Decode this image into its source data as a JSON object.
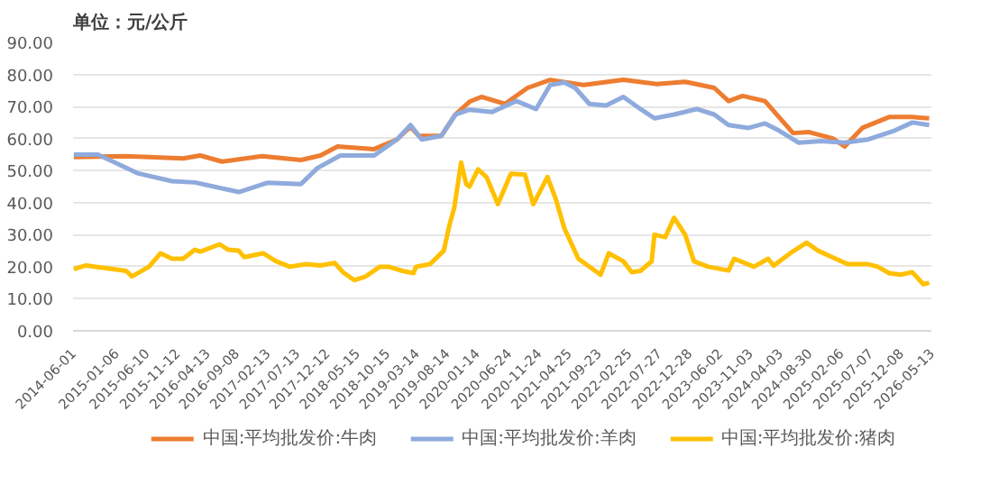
{
  "chart_data": {
    "type": "line",
    "annotations": [
      "单位：元/公斤"
    ],
    "xlim": [
      "2014-06-01",
      "2026-05-13"
    ],
    "xticks": [
      "2014-06-01",
      "2015-01-06",
      "2015-06-10",
      "2015-11-12",
      "2016-04-13",
      "2016-09-08",
      "2017-02-13",
      "2017-07-13",
      "2017-12-12",
      "2018-05-15",
      "2018-10-15",
      "2019-03-14",
      "2019-08-14",
      "2020-01-14",
      "2020-06-24",
      "2020-11-24",
      "2021-04-25",
      "2021-09-23",
      "2022-02-25",
      "2022-07-27",
      "2022-12-28",
      "2023-06-02",
      "2023-11-03",
      "2024-04-03",
      "2024-08-30",
      "2025-02-06",
      "2025-07-07",
      "2025-12-08",
      "2026-05-13"
    ],
    "ylim": [
      0,
      90
    ],
    "yticks": [
      {
        "value": 0,
        "label": "0.00"
      },
      {
        "value": 10,
        "label": "10.00"
      },
      {
        "value": 20,
        "label": "20.00"
      },
      {
        "value": 30,
        "label": "30.00"
      },
      {
        "value": 40,
        "label": "40.00"
      },
      {
        "value": 50,
        "label": "50.00"
      },
      {
        "value": 60,
        "label": "60.00"
      },
      {
        "value": 70,
        "label": "70.00"
      },
      {
        "value": 80,
        "label": "80.00"
      },
      {
        "value": 90,
        "label": "90.00"
      }
    ],
    "grid": "y",
    "legend": "bottom",
    "line_style": "solid",
    "series": [
      {
        "name": "中国:平均批发价:牛肉",
        "color": "#ed7d31",
        "x": [
          "2014-06-05",
          "2015-02-26",
          "2015-12-13",
          "2016-03-09",
          "2016-06-27",
          "2017-01-17",
          "2017-08-03",
          "2017-11-10",
          "2018-02-05",
          "2018-08-10",
          "2018-12-04",
          "2019-02-11",
          "2019-03-25",
          "2019-07-17",
          "2019-09-27",
          "2019-12-08",
          "2020-02-06",
          "2020-06-05",
          "2020-09-28",
          "2021-01-21",
          "2021-07-10",
          "2022-01-28",
          "2022-07-18",
          "2022-12-08",
          "2023-05-05",
          "2023-07-17",
          "2023-09-26",
          "2024-01-18",
          "2024-03-29",
          "2024-06-09",
          "2024-08-30",
          "2024-12-28",
          "2025-02-26",
          "2025-05-27",
          "2025-10-10",
          "2026-02-05",
          "2026-05-02"
        ],
        "values": [
          54.2,
          54.5,
          53.8,
          54.7,
          52.8,
          54.5,
          53.3,
          54.7,
          57.5,
          56.7,
          59.7,
          63.7,
          60.8,
          60.8,
          67.5,
          71.5,
          73,
          70.8,
          75.8,
          78.3,
          76.7,
          78.3,
          77,
          77.7,
          75.8,
          71.7,
          73.3,
          71.7,
          66.7,
          61.7,
          62,
          60,
          57.5,
          63.3,
          66.7,
          66.7,
          66.3
        ]
      },
      {
        "name": "中国:平均批发价:羊肉",
        "color": "#8faadc",
        "x": [
          "2014-06-05",
          "2014-10-06",
          "2015-04-24",
          "2015-10-17",
          "2016-02-10",
          "2016-09-21",
          "2017-02-15",
          "2017-08-03",
          "2017-10-26",
          "2018-02-19",
          "2018-08-10",
          "2018-12-04",
          "2019-02-11",
          "2019-04-09",
          "2019-07-17",
          "2019-09-27",
          "2019-12-08",
          "2020-04-01",
          "2020-08-03",
          "2020-11-10",
          "2021-01-21",
          "2021-04-03",
          "2021-05-28",
          "2021-08-08",
          "2021-11-01",
          "2022-01-28",
          "2022-04-25",
          "2022-07-05",
          "2022-10-13",
          "2023-02-05",
          "2023-05-05",
          "2023-07-17",
          "2023-10-27",
          "2024-01-18",
          "2024-03-29",
          "2024-07-08",
          "2024-10-30",
          "2025-02-26",
          "2025-06-25",
          "2025-11-08",
          "2026-02-05",
          "2026-05-02"
        ],
        "values": [
          55,
          55,
          49.2,
          46.7,
          46.3,
          43.3,
          46.2,
          45.8,
          50.8,
          54.7,
          54.7,
          59.7,
          64.2,
          59.7,
          60.8,
          67.5,
          69,
          68.3,
          71.7,
          69.2,
          76.7,
          77.5,
          75.8,
          70.8,
          70.3,
          73,
          69.2,
          66.3,
          67.5,
          69.2,
          67.5,
          64.2,
          63.3,
          64.7,
          62.5,
          58.7,
          59.2,
          58.7,
          59.7,
          62.5,
          65,
          64.2
        ]
      },
      {
        "name": "中国:平均批发价:猪肉",
        "color": "#ffc000",
        "x": [
          "2014-06-05",
          "2014-08-06",
          "2015-02-26",
          "2015-03-28",
          "2015-06-22",
          "2015-08-20",
          "2015-10-17",
          "2015-12-13",
          "2016-02-10",
          "2016-03-09",
          "2016-06-16",
          "2016-07-29",
          "2016-09-21",
          "2016-10-18",
          "2017-01-22",
          "2017-03-30",
          "2017-06-07",
          "2017-08-30",
          "2017-11-10",
          "2018-01-21",
          "2018-03-04",
          "2018-05-01",
          "2018-06-29",
          "2018-09-08",
          "2018-10-23",
          "2018-12-31",
          "2019-02-26",
          "2019-03-11",
          "2019-05-21",
          "2019-07-02",
          "2019-07-30",
          "2019-08-29",
          "2019-09-21",
          "2019-10-26",
          "2019-11-21",
          "2019-12-08",
          "2020-01-20",
          "2020-03-03",
          "2020-04-30",
          "2020-07-05",
          "2020-09-15",
          "2020-10-27",
          "2021-01-07",
          "2021-02-19",
          "2021-04-03",
          "2021-06-13",
          "2021-10-04",
          "2021-11-15",
          "2022-01-28",
          "2022-03-12",
          "2022-04-25",
          "2022-06-21",
          "2022-07-05",
          "2022-08-29",
          "2022-10-13",
          "2022-12-08",
          "2023-01-22",
          "2023-04-04",
          "2023-07-17",
          "2023-08-14",
          "2023-11-23",
          "2024-02-03",
          "2024-03-02",
          "2024-05-25",
          "2024-08-17",
          "2024-10-14",
          "2025-01-11",
          "2025-03-13",
          "2025-06-25",
          "2025-08-14",
          "2025-10-10",
          "2025-12-08",
          "2026-02-05",
          "2026-04-03",
          "2026-05-02"
        ],
        "values": [
          19.2,
          20.4,
          18.7,
          17,
          20,
          24.2,
          22.5,
          22.5,
          25.3,
          24.7,
          27,
          25.3,
          25,
          23,
          24.2,
          21.7,
          20,
          20.8,
          20.4,
          21.2,
          18.3,
          15.8,
          17,
          20,
          20,
          18.7,
          18,
          20,
          20.8,
          23.3,
          25,
          33.3,
          38.3,
          52.5,
          45.8,
          45,
          50.4,
          48,
          39.5,
          49,
          48.7,
          39.5,
          48,
          41,
          32,
          22.5,
          17.5,
          24.2,
          21.7,
          18.3,
          18.7,
          21.7,
          30,
          29.2,
          35.3,
          30,
          21.7,
          20,
          18.8,
          22.5,
          20,
          22.5,
          20.3,
          24.2,
          27.5,
          25,
          22.5,
          20.8,
          20.8,
          20,
          18,
          17.5,
          18.3,
          14.5,
          15
        ]
      }
    ]
  }
}
